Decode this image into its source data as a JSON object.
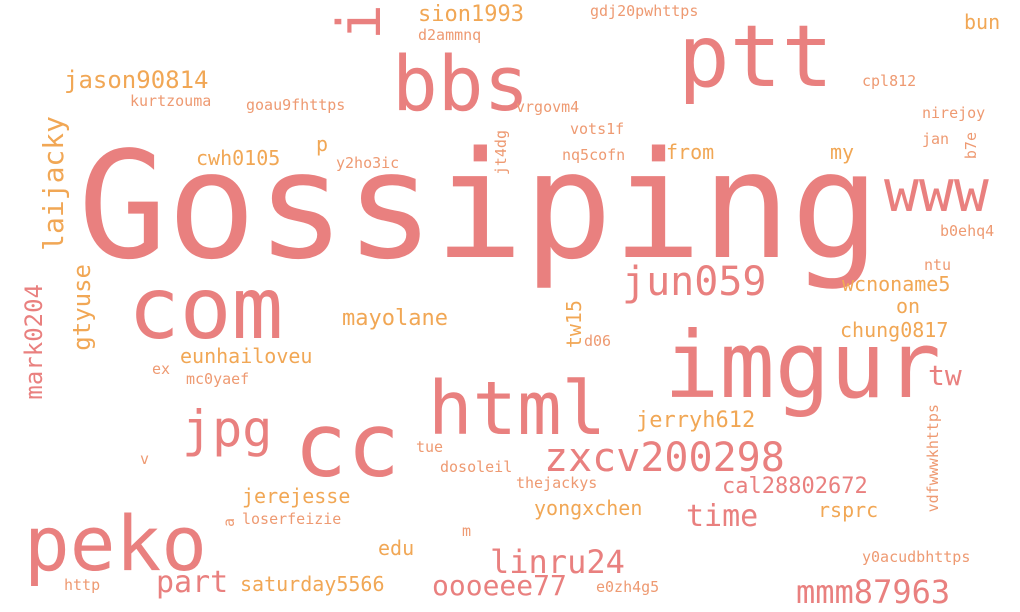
{
  "palette": {
    "primary": "#e9807f",
    "secondary": "#f1a755",
    "tertiary": "#ee9a72"
  },
  "words": [
    {
      "id": "gossiping",
      "text": "Gossiping",
      "tone": "primary"
    },
    {
      "id": "ptt",
      "text": "ptt",
      "tone": "primary"
    },
    {
      "id": "imgur",
      "text": "imgur",
      "tone": "primary"
    },
    {
      "id": "com",
      "text": "com",
      "tone": "primary"
    },
    {
      "id": "bbs",
      "text": "bbs",
      "tone": "primary"
    },
    {
      "id": "cc",
      "text": "cc",
      "tone": "primary"
    },
    {
      "id": "html",
      "text": "html",
      "tone": "primary"
    },
    {
      "id": "peko",
      "text": "peko",
      "tone": "primary"
    },
    {
      "id": "www",
      "text": "www",
      "tone": "primary"
    },
    {
      "id": "jpg",
      "text": "jpg",
      "tone": "primary"
    },
    {
      "id": "zxcv200298",
      "text": "zxcv200298",
      "tone": "primary"
    },
    {
      "id": "jun059",
      "text": "jun059",
      "tone": "primary"
    },
    {
      "id": "i",
      "text": "i",
      "tone": "primary"
    },
    {
      "id": "tw",
      "text": "tw",
      "tone": "primary"
    },
    {
      "id": "linru24",
      "text": "linru24",
      "tone": "primary"
    },
    {
      "id": "mmm87963",
      "text": "mmm87963",
      "tone": "primary"
    },
    {
      "id": "time",
      "text": "time",
      "tone": "primary"
    },
    {
      "id": "part",
      "text": "part",
      "tone": "primary"
    },
    {
      "id": "oooeee77",
      "text": "oooeee77",
      "tone": "primary"
    },
    {
      "id": "cal28802672",
      "text": "cal28802672",
      "tone": "primary"
    },
    {
      "id": "jerryh612",
      "text": "jerryh612",
      "tone": "secondary"
    },
    {
      "id": "laijacky",
      "text": "laijacky",
      "tone": "secondary"
    },
    {
      "id": "mark0204",
      "text": "mark0204",
      "tone": "primary"
    },
    {
      "id": "gtyuse",
      "text": "gtyuse",
      "tone": "secondary"
    },
    {
      "id": "jason90814",
      "text": "jason90814",
      "tone": "secondary"
    },
    {
      "id": "sion1993",
      "text": "sion1993",
      "tone": "secondary"
    },
    {
      "id": "mayolane",
      "text": "mayolane",
      "tone": "secondary"
    },
    {
      "id": "eunhailoveu",
      "text": "eunhailoveu",
      "tone": "secondary"
    },
    {
      "id": "cwh0105",
      "text": "cwh0105",
      "tone": "secondary"
    },
    {
      "id": "wcnoname5",
      "text": "wcnoname5",
      "tone": "secondary"
    },
    {
      "id": "chung0817",
      "text": "chung0817",
      "tone": "secondary"
    },
    {
      "id": "jerejesse",
      "text": "jerejesse",
      "tone": "secondary"
    },
    {
      "id": "yongxchen",
      "text": "yongxchen",
      "tone": "secondary"
    },
    {
      "id": "rsprc",
      "text": "rsprc",
      "tone": "secondary"
    },
    {
      "id": "saturday5566",
      "text": "saturday5566",
      "tone": "secondary"
    },
    {
      "id": "edu",
      "text": "edu",
      "tone": "secondary"
    },
    {
      "id": "tw15",
      "text": "tw15",
      "tone": "secondary"
    },
    {
      "id": "from",
      "text": "from",
      "tone": "secondary"
    },
    {
      "id": "my",
      "text": "my",
      "tone": "secondary"
    },
    {
      "id": "on",
      "text": "on",
      "tone": "secondary"
    },
    {
      "id": "bun",
      "text": "bun",
      "tone": "secondary"
    },
    {
      "id": "p",
      "text": "p",
      "tone": "secondary"
    },
    {
      "id": "d2ammnq",
      "text": "d2ammnq",
      "tone": "tertiary"
    },
    {
      "id": "gdj20pwhttps",
      "text": "gdj20pwhttps",
      "tone": "tertiary"
    },
    {
      "id": "kurtzouma",
      "text": "kurtzouma",
      "tone": "tertiary"
    },
    {
      "id": "goau9fhttps",
      "text": "goau9fhttps",
      "tone": "tertiary"
    },
    {
      "id": "vrgovm4",
      "text": "vrgovm4",
      "tone": "tertiary"
    },
    {
      "id": "vots1f",
      "text": "vots1f",
      "tone": "tertiary"
    },
    {
      "id": "nq5cofn",
      "text": "nq5cofn",
      "tone": "tertiary"
    },
    {
      "id": "y2ho3ic",
      "text": "y2ho3ic",
      "tone": "tertiary"
    },
    {
      "id": "jt4dg",
      "text": "jt4dg",
      "tone": "tertiary"
    },
    {
      "id": "cpl812",
      "text": "cpl812",
      "tone": "tertiary"
    },
    {
      "id": "nirejoy",
      "text": "nirejoy",
      "tone": "tertiary"
    },
    {
      "id": "jan",
      "text": "jan",
      "tone": "tertiary"
    },
    {
      "id": "b7e",
      "text": "b7e",
      "tone": "tertiary"
    },
    {
      "id": "b0ehq4",
      "text": "b0ehq4",
      "tone": "tertiary"
    },
    {
      "id": "ntu",
      "text": "ntu",
      "tone": "tertiary"
    },
    {
      "id": "d06",
      "text": "d06",
      "tone": "tertiary"
    },
    {
      "id": "ex",
      "text": "ex",
      "tone": "tertiary"
    },
    {
      "id": "mc0yaef",
      "text": "mc0yaef",
      "tone": "tertiary"
    },
    {
      "id": "vdfwwwkhttps",
      "text": "vdfwwwkhttps",
      "tone": "tertiary"
    },
    {
      "id": "tue",
      "text": "tue",
      "tone": "tertiary"
    },
    {
      "id": "dosoleil",
      "text": "dosoleil",
      "tone": "tertiary"
    },
    {
      "id": "thejackys",
      "text": "thejackys",
      "tone": "tertiary"
    },
    {
      "id": "v",
      "text": "v",
      "tone": "tertiary"
    },
    {
      "id": "loserfeizie",
      "text": "loserfeizie",
      "tone": "tertiary"
    },
    {
      "id": "a",
      "text": "a",
      "tone": "tertiary"
    },
    {
      "id": "m",
      "text": "m",
      "tone": "tertiary"
    },
    {
      "id": "y0acudbhttps",
      "text": "y0acudbhttps",
      "tone": "tertiary"
    },
    {
      "id": "http",
      "text": "http",
      "tone": "tertiary"
    },
    {
      "id": "e0zh4g5",
      "text": "e0zh4g5",
      "tone": "tertiary"
    }
  ]
}
